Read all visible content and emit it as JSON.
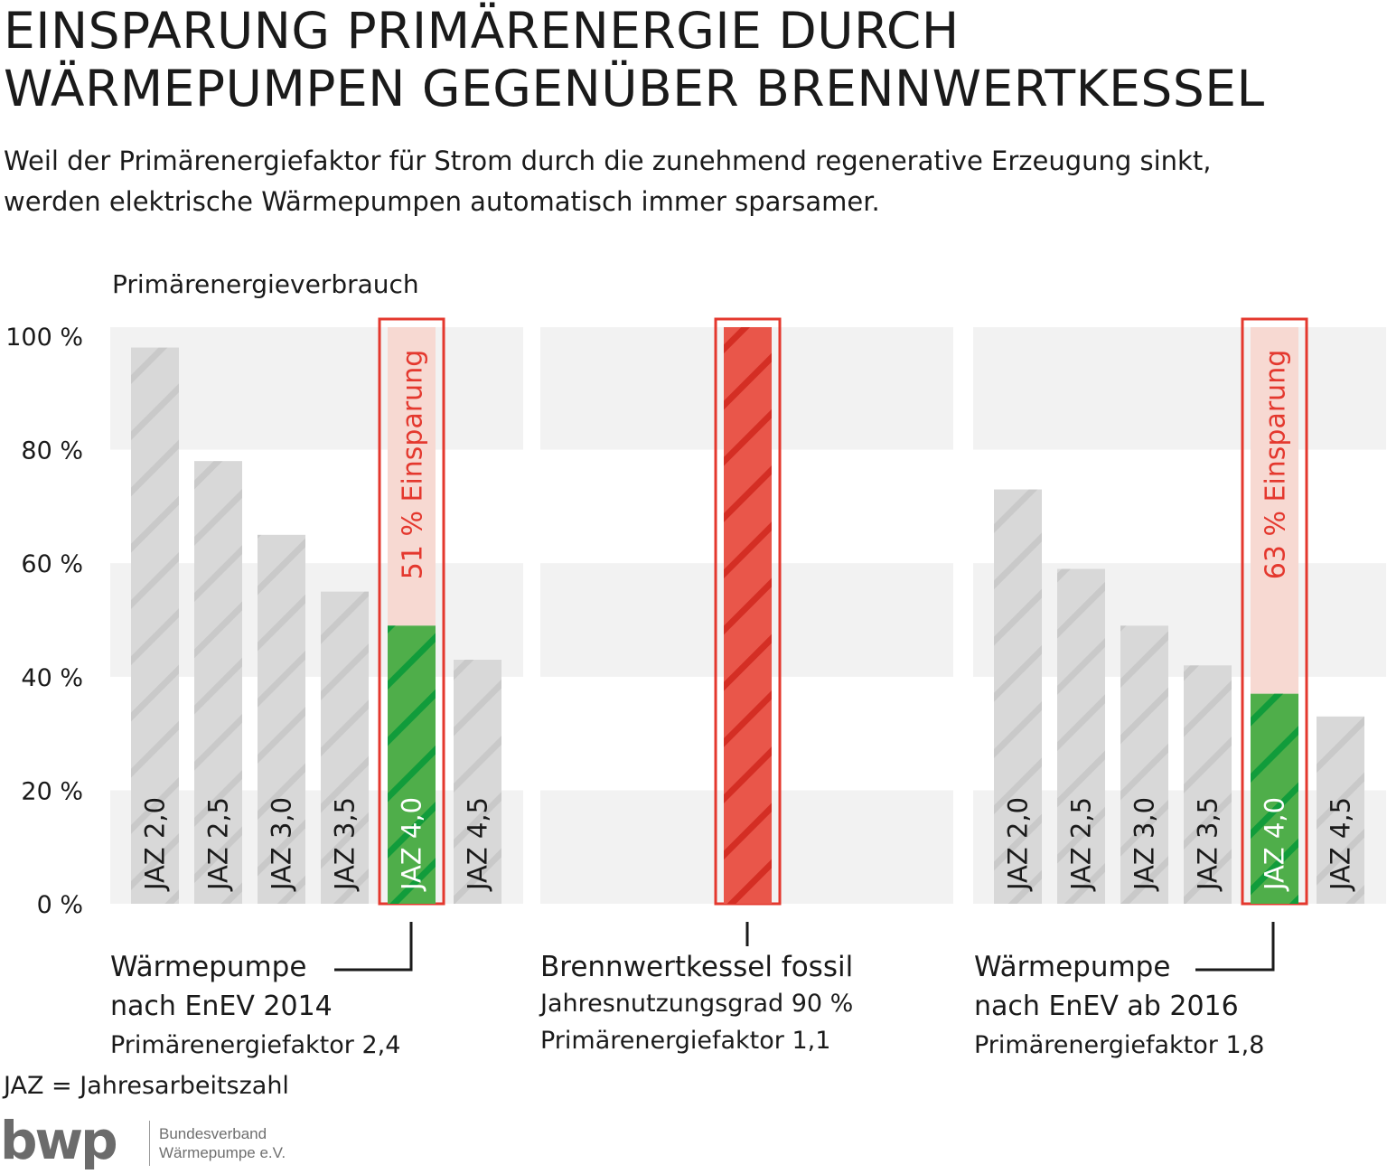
{
  "title": {
    "line1": "EINSPARUNG PRIMÄRENERGIE DURCH",
    "line2": "WÄRMEPUMPEN GEGENÜBER BRENNWERTKESSEL"
  },
  "subtitle": {
    "line1": "Weil der Primärenergiefaktor für Strom durch die zunehmend regenerative Erzeugung sinkt,",
    "line2": "werden elektrische Wärmepumpen automatisch immer sparsamer."
  },
  "footnote": "JAZ = Jahresarbeitszahl",
  "logo": {
    "mark": "bwp",
    "line1": "Bundesverband",
    "line2": "Wärmepumpe e.V."
  },
  "colors": {
    "gray_bar": "#d8d8d8",
    "band": "#f2f2f2",
    "red": "#e4382e",
    "red_bar": "#e9564a",
    "green": "#4fae4a",
    "saving_fill": "#f7d9d2"
  },
  "chart_data": {
    "type": "bar",
    "ylabel": "Primärenergieverbrauch",
    "ylim": [
      0,
      100
    ],
    "yticks": [
      "0 %",
      "20 %",
      "40 %",
      "60 %",
      "80 %",
      "100 %"
    ],
    "grid_bands": true,
    "groups": [
      {
        "name": "Wärmepumpe",
        "sub1": "nach EnEV 2014",
        "sub2": "Primärenergiefaktor 2,4",
        "categories": [
          "JAZ 2,0",
          "JAZ 2,5",
          "JAZ 3,0",
          "JAZ 3,5",
          "JAZ 4,0",
          "JAZ 4,5"
        ],
        "values": [
          98,
          78,
          65,
          55,
          49,
          43
        ],
        "highlight_index": 4,
        "saving": "51 % Einsparung"
      },
      {
        "name": "Brennwertkessel fossil",
        "sub1": "Jahresnutzungsgrad 90 %",
        "sub2": "Primärenergiefaktor 1,1",
        "categories": [
          ""
        ],
        "values": [
          100
        ],
        "highlight_index": 0,
        "saving": ""
      },
      {
        "name": "Wärmepumpe",
        "sub1": "nach EnEV ab 2016",
        "sub2": "Primärenergiefaktor 1,8",
        "categories": [
          "JAZ 2,0",
          "JAZ 2,5",
          "JAZ 3,0",
          "JAZ 3,5",
          "JAZ 4,0",
          "JAZ 4,5"
        ],
        "values": [
          73,
          59,
          49,
          42,
          37,
          33
        ],
        "highlight_index": 4,
        "saving": "63 % Einsparung"
      }
    ]
  }
}
